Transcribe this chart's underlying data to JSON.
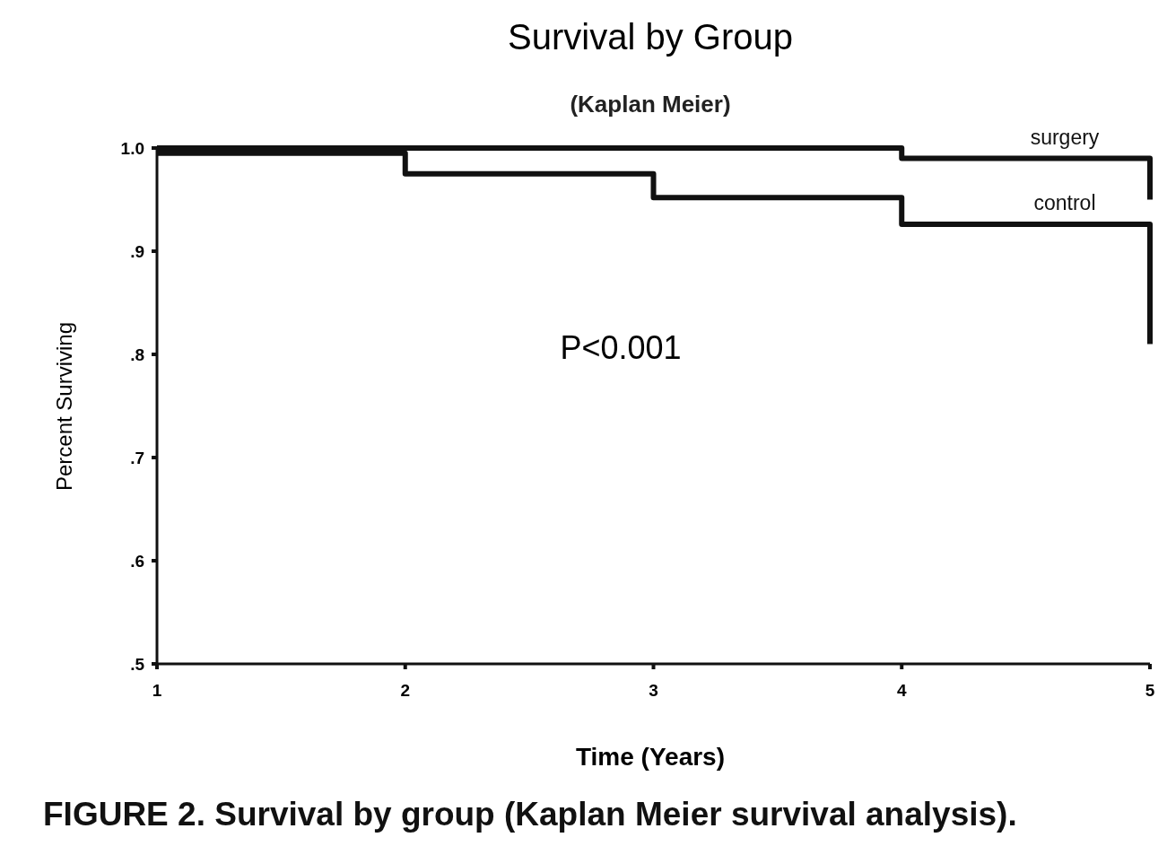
{
  "chart_data": {
    "type": "step",
    "title": "Survival by Group",
    "subtitle": "(Kaplan Meier)",
    "xlabel": "Time (Years)",
    "ylabel": "Percent Surviving",
    "series": [
      {
        "name": "surgery",
        "color": "#111111",
        "x": [
          1,
          4,
          5
        ],
        "values": [
          1.0,
          0.99,
          0.95
        ]
      },
      {
        "name": "control",
        "color": "#111111",
        "x": [
          1,
          2,
          3,
          4,
          5
        ],
        "values": [
          0.995,
          0.975,
          0.952,
          0.926,
          0.81
        ]
      }
    ],
    "xlim": [
      1,
      5
    ],
    "xticks": [
      1,
      2,
      3,
      4,
      5
    ],
    "ylim": [
      0.5,
      1.0
    ],
    "yticks": [
      {
        "value": 0.5,
        "label": ".5"
      },
      {
        "value": 0.6,
        "label": ".6"
      },
      {
        "value": 0.7,
        "label": ".7"
      },
      {
        "value": 0.8,
        "label": ".8"
      },
      {
        "value": 0.9,
        "label": ".9"
      },
      {
        "value": 1.0,
        "label": "1.0"
      }
    ],
    "annotations": [
      {
        "text": "P<0.001"
      },
      {
        "text": "FIGURE 2. Survival by group (Kaplan Meier survival analysis)."
      }
    ],
    "grid": false,
    "line_style": "solid",
    "marker": "none"
  }
}
